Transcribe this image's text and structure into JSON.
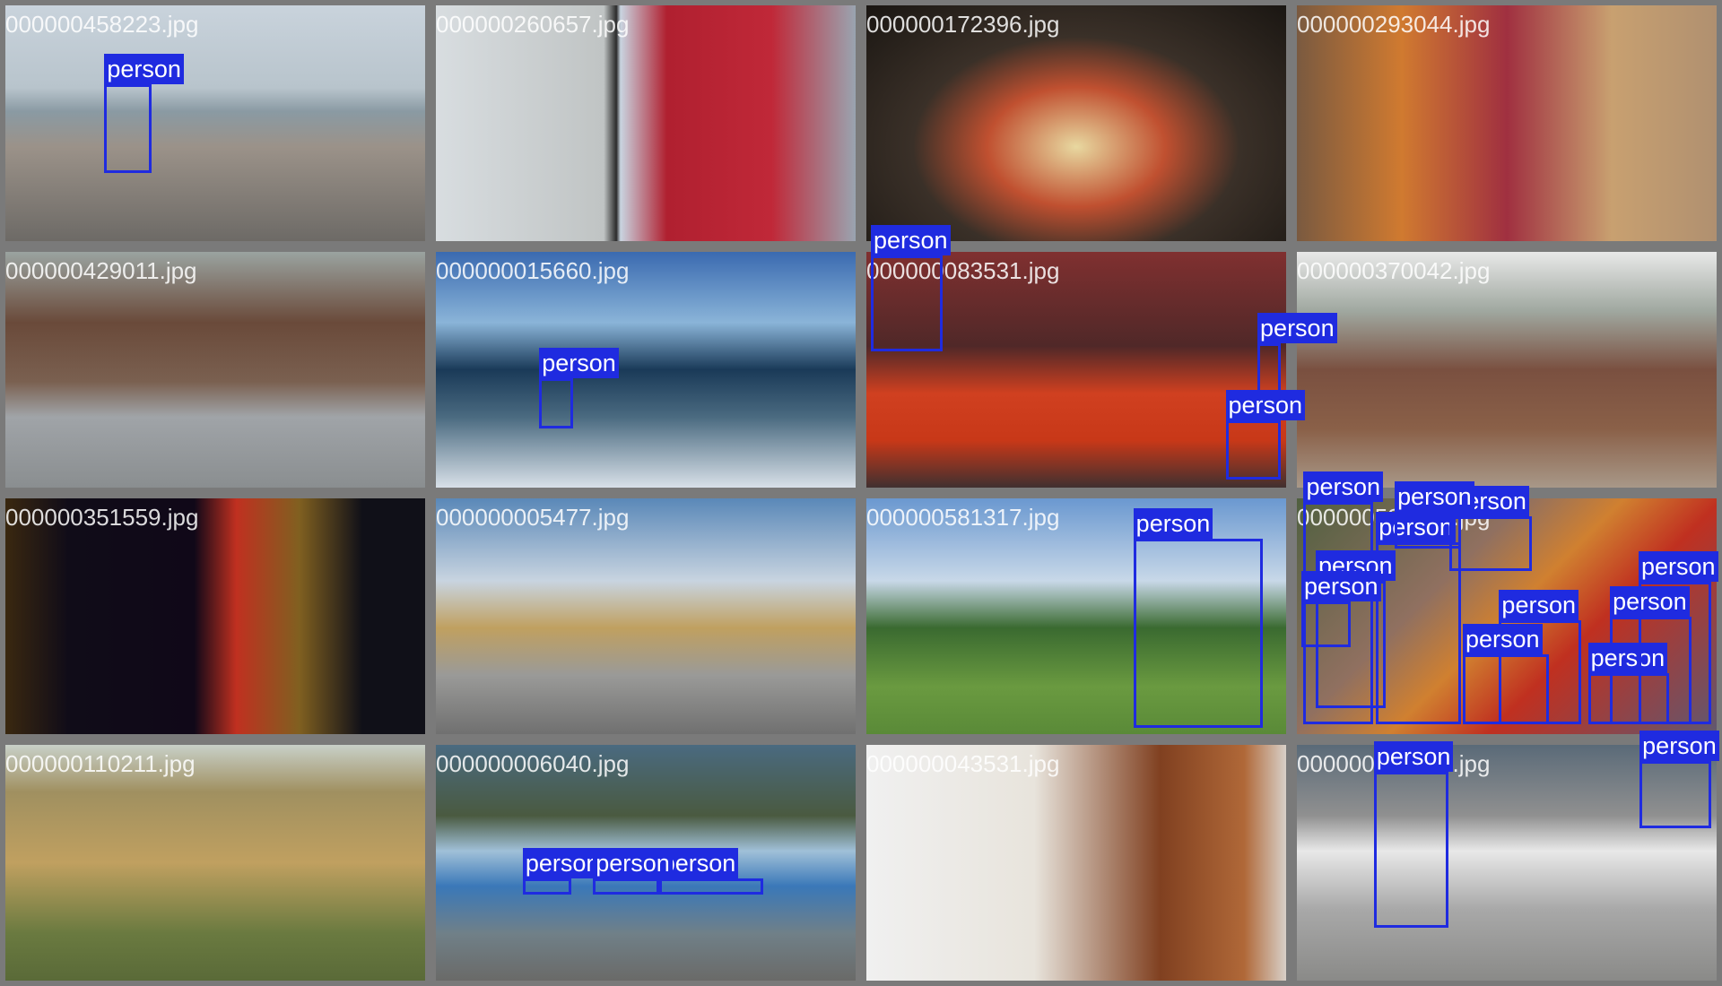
{
  "tiles": [
    {
      "filename": "000000458223.jpg",
      "labels": [
        "person"
      ]
    },
    {
      "filename": "000000260657.jpg",
      "labels": []
    },
    {
      "filename": "000000172396.jpg",
      "labels": []
    },
    {
      "filename": "000000293044.jpg",
      "labels": []
    },
    {
      "filename": "000000429011.jpg",
      "labels": []
    },
    {
      "filename": "000000015660.jpg",
      "labels": [
        "person"
      ]
    },
    {
      "filename": "000000083531.jpg",
      "labels": [
        "person",
        "person",
        "person"
      ]
    },
    {
      "filename": "000000370042.jpg",
      "labels": []
    },
    {
      "filename": "000000351559.jpg",
      "labels": []
    },
    {
      "filename": "000000005477.jpg",
      "labels": []
    },
    {
      "filename": "000000581317.jpg",
      "labels": [
        "person"
      ]
    },
    {
      "filename": "000000532481.jpg",
      "labels": [
        "person",
        "person",
        "person",
        "person",
        "person",
        "person",
        "person",
        "person",
        "person",
        "person",
        "person"
      ]
    },
    {
      "filename": "000000110211.jpg",
      "labels": []
    },
    {
      "filename": "000000006040.jpg",
      "labels": [
        "person",
        "person",
        "person"
      ]
    },
    {
      "filename": "000000043531.jpg",
      "labels": []
    },
    {
      "filename": "000000039373.jpg",
      "labels": [
        "person",
        "person"
      ]
    }
  ]
}
